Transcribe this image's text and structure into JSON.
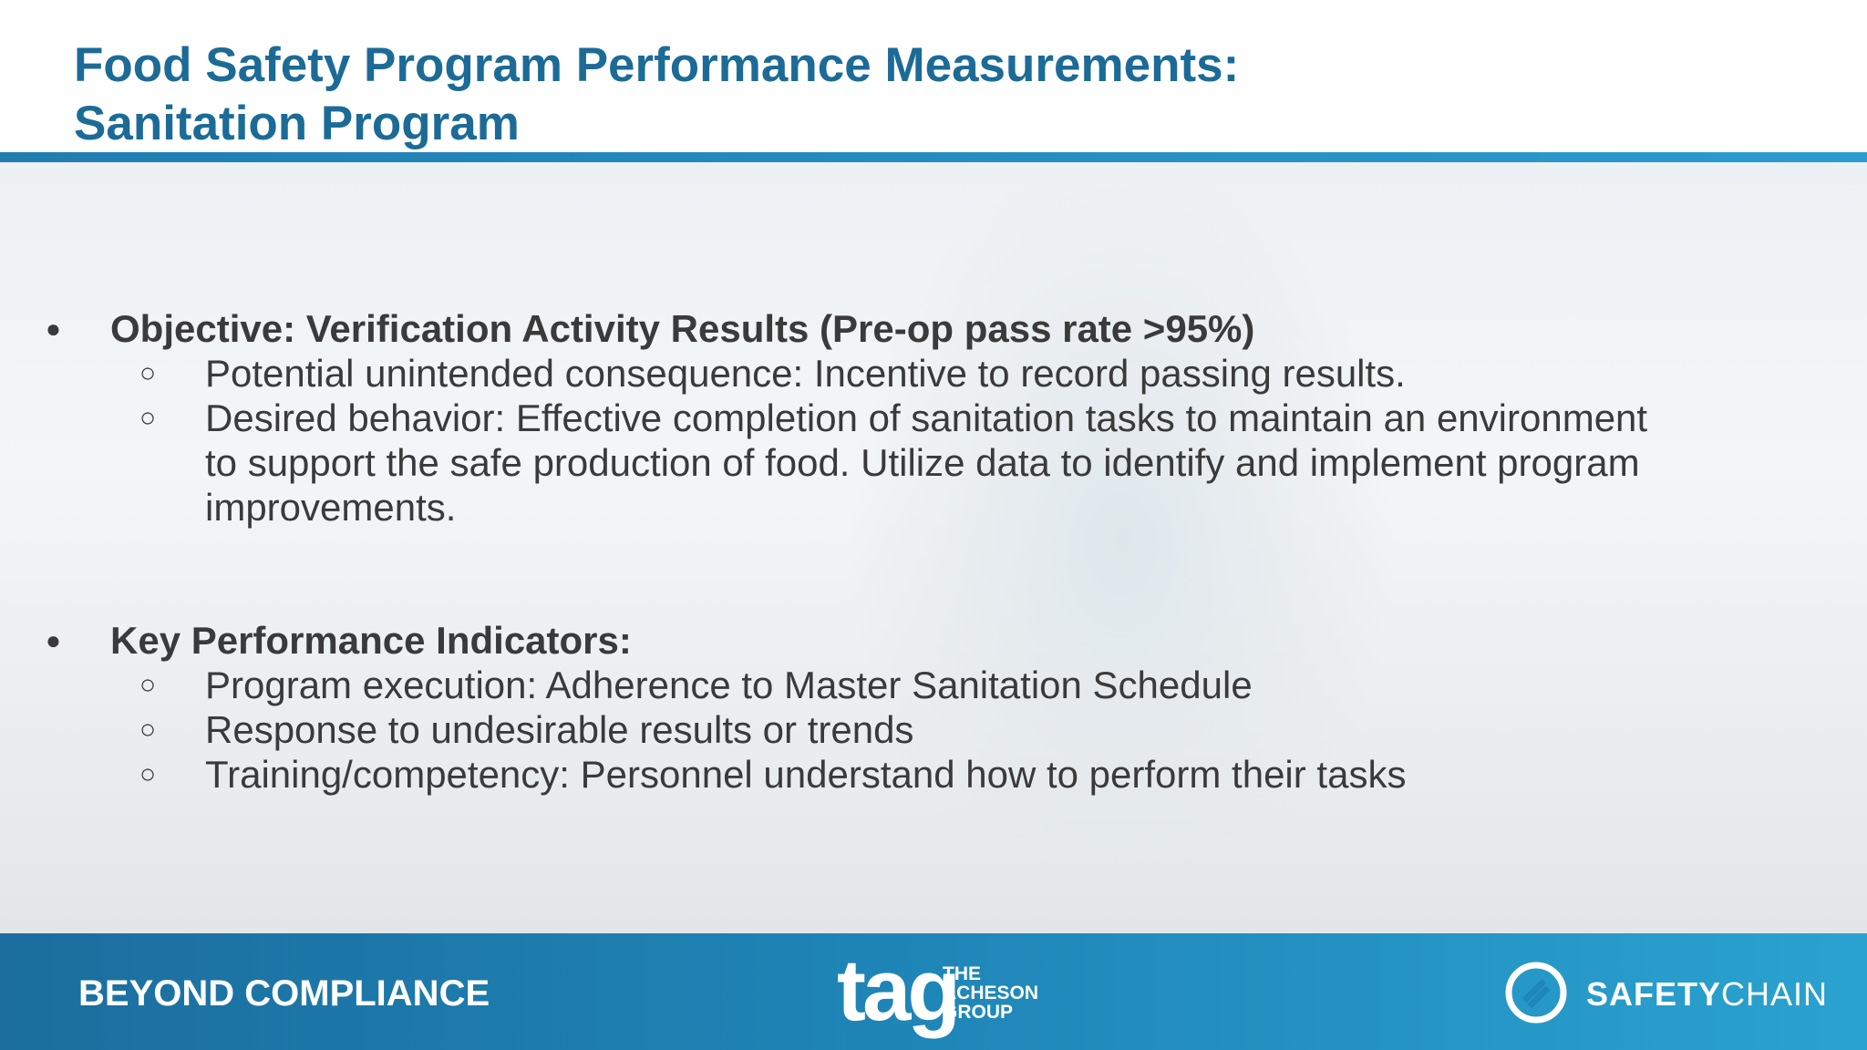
{
  "header": {
    "title_lines": [
      "Food Safety Program Performance Measurements:",
      "Sanitation Program"
    ]
  },
  "bullets": [
    {
      "text": "Objective: Verification Activity Results (Pre-op pass rate >95%)",
      "subitems": [
        "Potential unintended consequence: Incentive to record passing results.",
        "Desired behavior: Effective completion of sanitation tasks to maintain an environment to support the safe production of food. Utilize data to identify and implement program improvements."
      ]
    },
    {
      "text": "Key Performance Indicators:",
      "subitems": [
        "Program execution: Adherence to Master Sanitation Schedule",
        "Response to undesirable results or trends",
        "Training/competency: Personnel understand how to perform their tasks"
      ]
    }
  ],
  "footer": {
    "tagline": "BEYOND COMPLIANCE",
    "tag_logo": "tag",
    "tag_name_lines": [
      "THE",
      "ACHESON",
      "GROUP"
    ],
    "safetychain_bold": "SAFETY",
    "safetychain_light": "CHAIN"
  }
}
